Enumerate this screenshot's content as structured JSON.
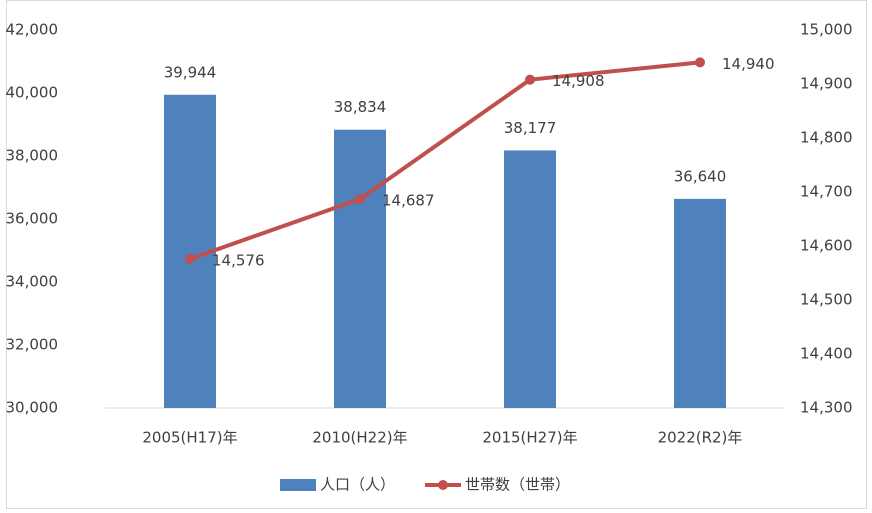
{
  "chart_data": {
    "type": "bar",
    "categories": [
      "2005(H17)年",
      "2010(H22)年",
      "2015(H27)年",
      "2022(R2)年"
    ],
    "series": [
      {
        "name": "人口（人）",
        "type": "bar",
        "color": "#4f81bd",
        "axis": "y",
        "values": [
          39944,
          38834,
          38177,
          36640
        ],
        "value_labels": [
          "39,944",
          "38,834",
          "38,177",
          "36,640"
        ]
      },
      {
        "name": "世帯数（世帯）",
        "type": "line",
        "color": "#c0504d",
        "axis": "y2",
        "values": [
          14576,
          14687,
          14908,
          14940
        ],
        "value_labels": [
          "14,576",
          "14,687",
          "14,908",
          "14,940"
        ]
      }
    ],
    "ylim": [
      30000,
      42000
    ],
    "yticks": [
      {
        "value": 30000,
        "label": "30,000"
      },
      {
        "value": 32000,
        "label": "32,000"
      },
      {
        "value": 34000,
        "label": "34,000"
      },
      {
        "value": 36000,
        "label": "36,000"
      },
      {
        "value": 38000,
        "label": "38,000"
      },
      {
        "value": 40000,
        "label": "40,000"
      },
      {
        "value": 42000,
        "label": "42,000"
      }
    ],
    "y2lim": [
      14300,
      15000
    ],
    "y2ticks": [
      {
        "value": 14300,
        "label": "14,300"
      },
      {
        "value": 14400,
        "label": "14,400"
      },
      {
        "value": 14500,
        "label": "14,500"
      },
      {
        "value": 14600,
        "label": "14,600"
      },
      {
        "value": 14700,
        "label": "14,700"
      },
      {
        "value": 14800,
        "label": "14,800"
      },
      {
        "value": 14900,
        "label": "14,900"
      },
      {
        "value": 15000,
        "label": "15,000"
      }
    ],
    "grid": false,
    "legend": "bottom"
  }
}
